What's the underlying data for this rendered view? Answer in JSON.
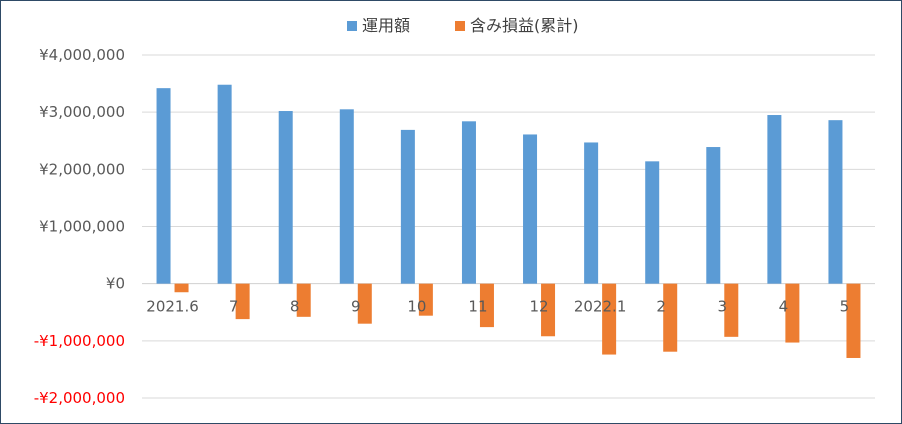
{
  "chart_data": {
    "type": "bar",
    "categories": [
      "2021.6",
      "7",
      "8",
      "9",
      "10",
      "11",
      "12",
      "2022.1",
      "2",
      "3",
      "4",
      "5"
    ],
    "series": [
      {
        "name": "運用額",
        "color": "#5b9bd5",
        "values": [
          3420000,
          3480000,
          3020000,
          3050000,
          2690000,
          2840000,
          2610000,
          2470000,
          2140000,
          2390000,
          2950000,
          2860000
        ]
      },
      {
        "name": "含み損益(累計)",
        "color": "#ed7d31",
        "values": [
          -150000,
          -620000,
          -580000,
          -700000,
          -560000,
          -760000,
          -920000,
          -1240000,
          -1190000,
          -930000,
          -1030000,
          -1300000
        ]
      }
    ],
    "ylim": [
      -2000000,
      4000000
    ],
    "yticks": [
      4000000,
      3000000,
      2000000,
      1000000,
      0,
      -1000000,
      -2000000
    ],
    "ytick_labels": [
      "¥4,000,000",
      "¥3,000,000",
      "¥2,000,000",
      "¥1,000,000",
      "¥0",
      "-¥1,000,000",
      "-¥2,000,000"
    ],
    "negative_tick_color": "#ff0000",
    "grid": true,
    "legend_position": "top-center",
    "title": "",
    "xlabel": "",
    "ylabel": ""
  }
}
